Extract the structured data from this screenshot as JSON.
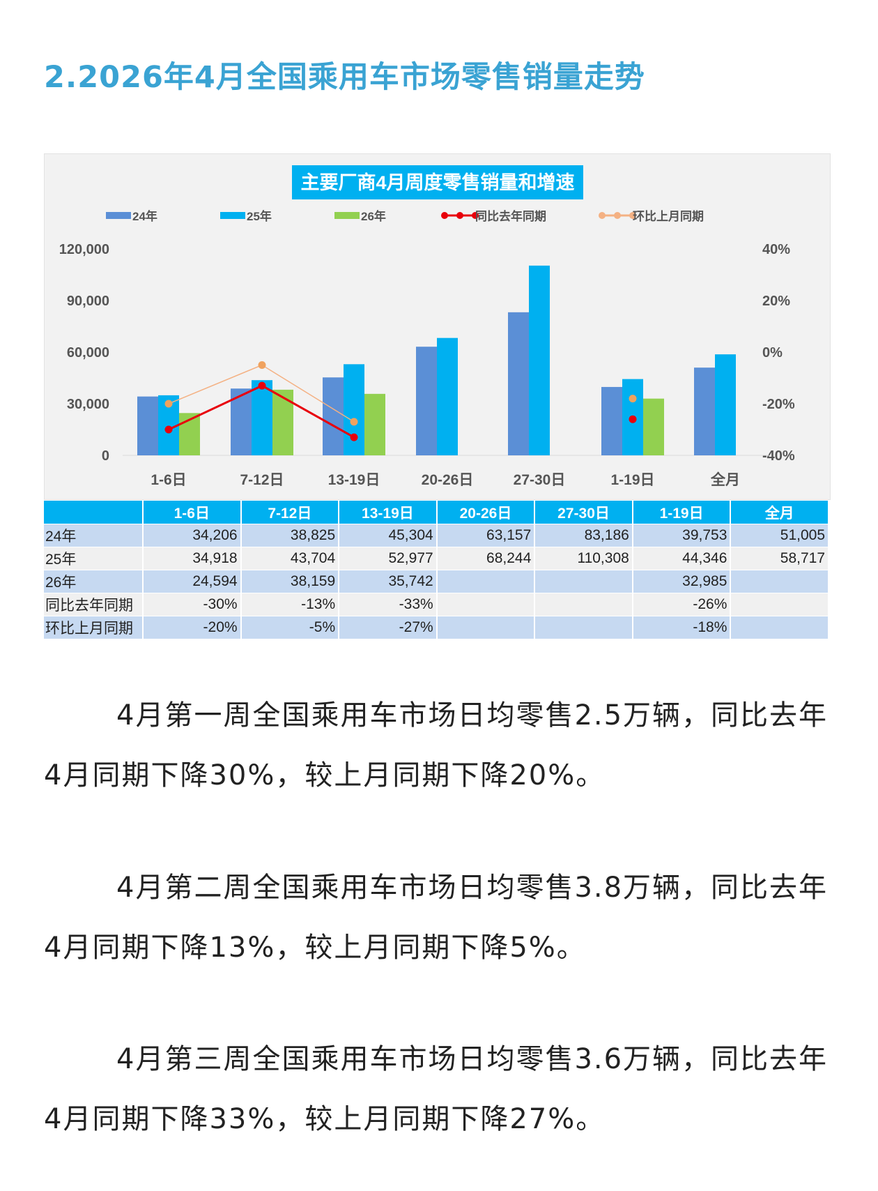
{
  "heading": "2.2026年4月全国乘用车市场零售销量走势",
  "chart_data": {
    "type": "bar+line",
    "title": "主要厂商4月周度零售销量和增速",
    "categories": [
      "1-6日",
      "7-12日",
      "13-19日",
      "20-26日",
      "27-30日",
      "1-19日",
      "全月"
    ],
    "y_left": {
      "ticks": [
        "0",
        "30,000",
        "60,000",
        "90,000",
        "120,000"
      ],
      "range": [
        0,
        120000
      ]
    },
    "y_right": {
      "ticks": [
        "-40%",
        "-20%",
        "0%",
        "20%",
        "40%"
      ],
      "range": [
        -40,
        40
      ]
    },
    "legend_position": "top",
    "bar_series": [
      {
        "name": "24年",
        "color": "#5b8fd6",
        "values": [
          34206,
          38825,
          45304,
          63157,
          83186,
          39753,
          51005
        ]
      },
      {
        "name": "25年",
        "color": "#00b0f0",
        "values": [
          34918,
          43704,
          52977,
          68244,
          110308,
          44346,
          58717
        ]
      },
      {
        "name": "26年",
        "color": "#92d050",
        "values": [
          24594,
          38159,
          35742,
          null,
          null,
          32985,
          null
        ]
      }
    ],
    "line_series": [
      {
        "name": "同比去年同期",
        "color": "#e8000b",
        "values": [
          -30,
          -13,
          -33,
          null,
          null,
          -26,
          null
        ]
      },
      {
        "name": "环比上月同期",
        "color": "#f4b183",
        "values": [
          -20,
          -5,
          -27,
          null,
          null,
          -18,
          null
        ]
      }
    ]
  },
  "table": {
    "headers": [
      "",
      "1-6日",
      "7-12日",
      "13-19日",
      "20-26日",
      "27-30日",
      "1-19日",
      "全月"
    ],
    "rows": [
      [
        "24年",
        "34,206",
        "38,825",
        "45,304",
        "63,157",
        "83,186",
        "39,753",
        "51,005"
      ],
      [
        "25年",
        "34,918",
        "43,704",
        "52,977",
        "68,244",
        "110,308",
        "44,346",
        "58,717"
      ],
      [
        "26年",
        "24,594",
        "38,159",
        "35,742",
        "",
        "",
        "32,985",
        ""
      ],
      [
        "同比去年同期",
        "-30%",
        "-13%",
        "-33%",
        "",
        "",
        "-26%",
        ""
      ],
      [
        "环比上月同期",
        "-20%",
        "-5%",
        "-27%",
        "",
        "",
        "-18%",
        ""
      ]
    ]
  },
  "paragraphs": [
    "4月第一周全国乘用车市场日均零售2.5万辆，同比去年4月同期下降30%，较上月同期下降20%。",
    "4月第二周全国乘用车市场日均零售3.8万辆，同比去年4月同期下降13%，较上月同期下降5%。",
    "4月第三周全国乘用车市场日均零售3.6万辆，同比去年4月同期下降33%，较上月同期下降27%。"
  ]
}
